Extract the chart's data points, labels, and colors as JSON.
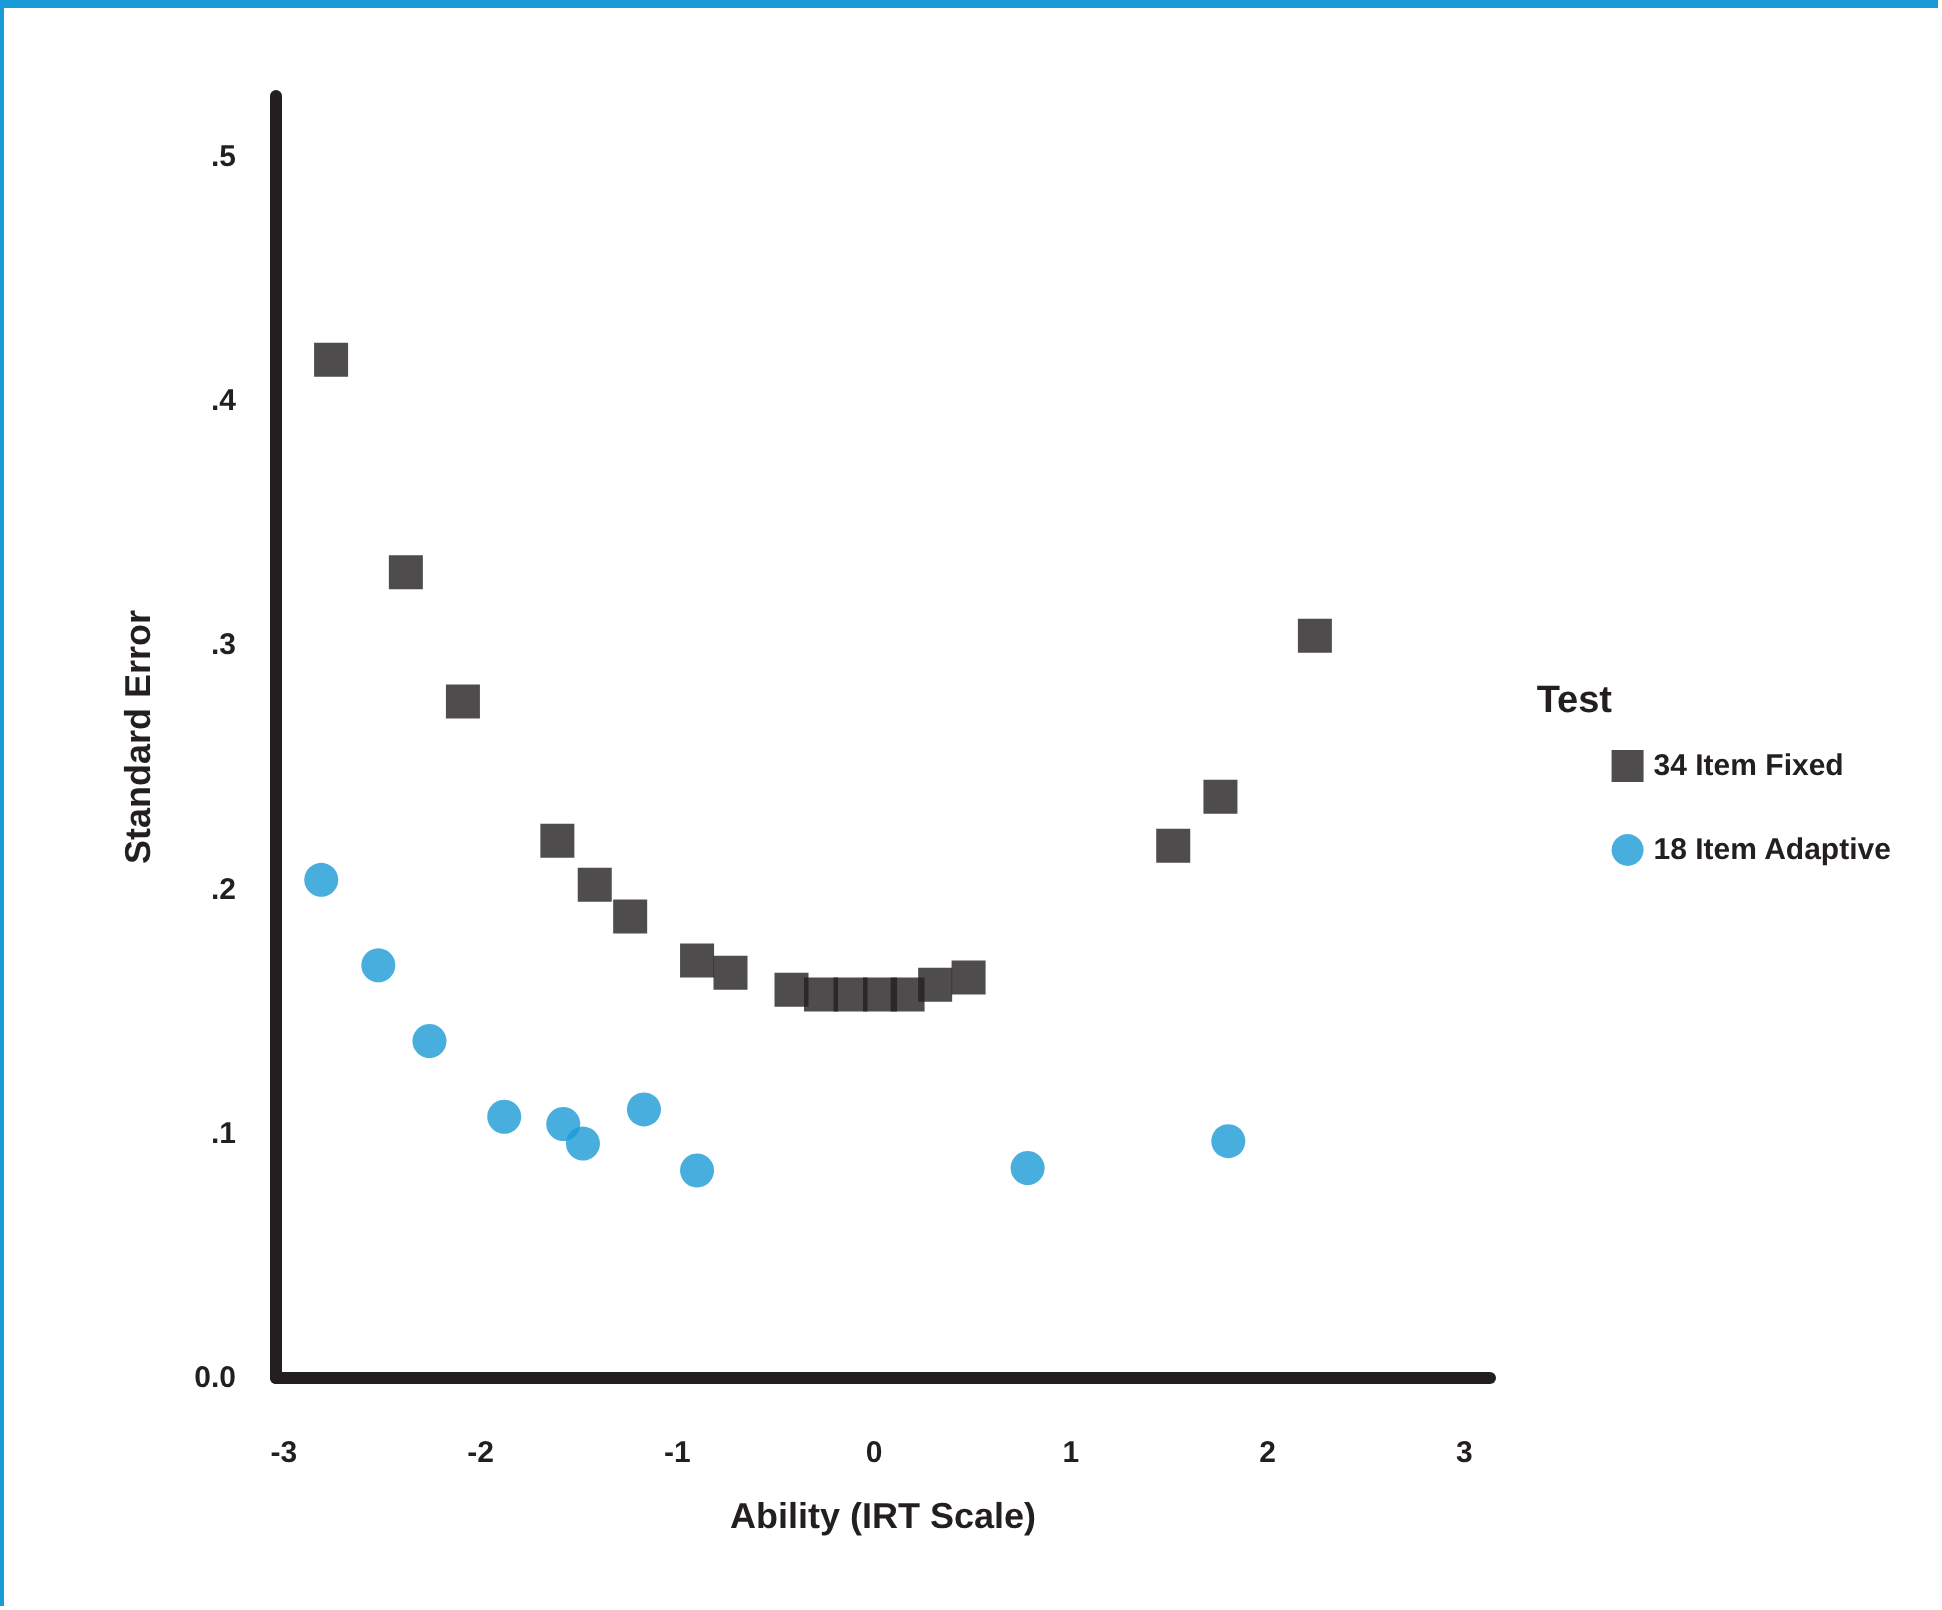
{
  "chart_data": {
    "type": "scatter",
    "xlabel": "Ability (IRT Scale)",
    "ylabel": "Standard Error",
    "legend_title": "Test",
    "legend": "right",
    "xlim": [
      -3.04,
      3.13
    ],
    "xticks": [
      -3,
      -2,
      -1,
      0,
      1,
      2,
      3
    ],
    "ylim": [
      0,
      0.525
    ],
    "yticks": [
      {
        "value": 0,
        "label": "0.0"
      },
      {
        "value": 0.1,
        "label": ".1"
      },
      {
        "value": 0.2,
        "label": ".2"
      },
      {
        "value": 0.3,
        "label": ".3"
      },
      {
        "value": 0.4,
        "label": ".4"
      },
      {
        "value": 0.5,
        "label": ".5"
      }
    ],
    "grid": false,
    "series": [
      {
        "name": "34 Item Fixed",
        "color": "#231f20",
        "marker": "square",
        "x": [
          -2.76,
          -2.38,
          -2.09,
          -1.61,
          -1.42,
          -1.24,
          -0.9,
          -0.73,
          -0.42,
          -0.27,
          -0.12,
          0.03,
          0.17,
          0.31,
          0.48,
          1.52,
          1.76,
          2.24
        ],
        "values": [
          0.417,
          0.33,
          0.277,
          0.22,
          0.202,
          0.189,
          0.171,
          0.166,
          0.159,
          0.157,
          0.157,
          0.157,
          0.157,
          0.161,
          0.164,
          0.218,
          0.238,
          0.304
        ]
      },
      {
        "name": "18 Item Adaptive",
        "color": "#1a9ad6",
        "marker": "circle",
        "x": [
          -2.81,
          -2.52,
          -2.26,
          -1.88,
          -1.58,
          -1.48,
          -1.17,
          -0.9,
          0.78,
          1.8
        ],
        "values": [
          0.204,
          0.169,
          0.138,
          0.107,
          0.104,
          0.096,
          0.11,
          0.085,
          0.086,
          0.097
        ]
      }
    ]
  }
}
